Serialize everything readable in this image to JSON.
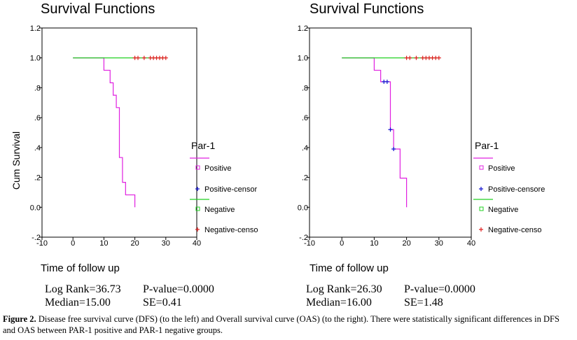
{
  "chart_data": [
    {
      "type": "line",
      "title": "Survival Functions",
      "xlabel": "Time of follow up",
      "ylabel": "Cum Survival",
      "xlim": [
        -10,
        40
      ],
      "ylim": [
        -0.2,
        1.2
      ],
      "x_ticks": [
        "-10",
        "0",
        "10",
        "20",
        "30",
        "40"
      ],
      "y_ticks": [
        "-.2",
        "0.0",
        ".2",
        ".4",
        ".6",
        ".8",
        "1.0",
        "1.2"
      ],
      "legend_title": "Par-1",
      "legend_position": "right",
      "legend": [
        "Positive",
        "Positive-censor",
        "Negative",
        "Negative-censo"
      ],
      "series": [
        {
          "name": "Positive",
          "color": "#e020e0",
          "style": "step",
          "x": [
            0,
            10,
            12,
            13,
            14,
            15,
            16,
            17,
            19,
            20
          ],
          "y": [
            1.0,
            0.917,
            0.833,
            0.75,
            0.667,
            0.333,
            0.167,
            0.083,
            0.083,
            0.0
          ]
        },
        {
          "name": "Positive-censor",
          "color": "#1010d0",
          "style": "marker",
          "x": [],
          "y": []
        },
        {
          "name": "Negative",
          "color": "#20d020",
          "style": "step",
          "x": [
            0,
            30
          ],
          "y": [
            1.0,
            1.0
          ]
        },
        {
          "name": "Negative-censo",
          "color": "#e02020",
          "style": "marker",
          "x": [
            20,
            21,
            23,
            25,
            26,
            27,
            28,
            29,
            30
          ],
          "y": [
            1,
            1,
            1,
            1,
            1,
            1,
            1,
            1,
            1
          ]
        }
      ],
      "stats": {
        "log_rank": "Log Rank=36.73",
        "p_value": "P-value=0.0000",
        "median": "Median=15.00",
        "se": "SE=0.41"
      }
    },
    {
      "type": "line",
      "title": "Survival Functions",
      "xlabel": "Time of follow up",
      "ylabel": "Cum Survival",
      "xlim": [
        -10,
        40
      ],
      "ylim": [
        -0.2,
        1.2
      ],
      "x_ticks": [
        "-10",
        "0",
        "10",
        "20",
        "30",
        "40"
      ],
      "y_ticks": [
        "-.2",
        "0.0",
        ".2",
        ".4",
        ".6",
        ".8",
        "1.0",
        "1.2"
      ],
      "legend_title": "Par-1",
      "legend_position": "right",
      "legend": [
        "Positive",
        "Positive-censore",
        "Negative",
        "Negative-censo"
      ],
      "series": [
        {
          "name": "Positive",
          "color": "#e020e0",
          "style": "step",
          "x": [
            0,
            10,
            12,
            15,
            16,
            18,
            20
          ],
          "y": [
            1.0,
            0.917,
            0.84,
            0.52,
            0.39,
            0.195,
            0.0
          ]
        },
        {
          "name": "Positive-censore",
          "color": "#1010d0",
          "style": "marker",
          "x": [
            13,
            14,
            15,
            16
          ],
          "y": [
            0.84,
            0.84,
            0.52,
            0.39
          ]
        },
        {
          "name": "Negative",
          "color": "#20d020",
          "style": "step",
          "x": [
            0,
            30
          ],
          "y": [
            1.0,
            1.0
          ]
        },
        {
          "name": "Negative-censo",
          "color": "#e02020",
          "style": "marker",
          "x": [
            20,
            21,
            23,
            25,
            26,
            27,
            28,
            29,
            30
          ],
          "y": [
            1,
            1,
            1,
            1,
            1,
            1,
            1,
            1,
            1
          ]
        }
      ],
      "stats": {
        "log_rank": "Log Rank=26.30",
        "p_value": "P-value=0.0000",
        "median": "Median=16.00",
        "se": "SE=1.48"
      }
    }
  ],
  "caption": {
    "label": "Figure 2.",
    "text": " Disease free survival curve (DFS) (to the left) and Overall survival curve (OAS) (to the right). There were statistically significant differences in DFS and OAS between PAR-1 positive and PAR-1 negative groups."
  }
}
